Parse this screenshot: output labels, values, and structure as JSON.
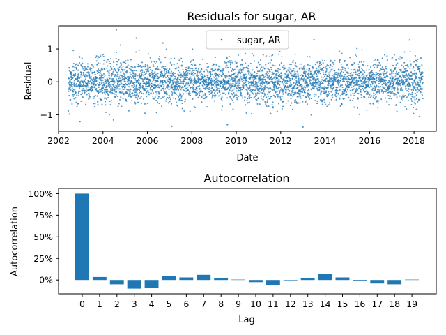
{
  "chart_data": [
    {
      "type": "scatter",
      "title": "Residuals for sugar, AR",
      "xlabel": "Date",
      "ylabel": "Residual",
      "xlim": [
        2002.0,
        2019.0
      ],
      "ylim": [
        -1.5,
        1.7
      ],
      "x_ticks": [
        2002,
        2004,
        2006,
        2008,
        2010,
        2012,
        2014,
        2016,
        2018
      ],
      "x_tick_labels": [
        "2002",
        "2004",
        "2006",
        "2008",
        "2010",
        "2012",
        "2014",
        "2016",
        "2018"
      ],
      "y_ticks": [
        -1,
        0,
        1
      ],
      "y_tick_labels": [
        "−1",
        "0",
        "1"
      ],
      "legend": {
        "entries": [
          "sugar, AR"
        ],
        "placement": "top-center"
      },
      "color": "#1f77b4",
      "grid": false,
      "series": [
        {
          "name": "sugar, AR",
          "x_range": [
            2002.45,
            2018.4
          ],
          "n_points": 4000,
          "mean": 0.0,
          "std": 0.32,
          "notable_points": [
            {
              "x": 2004.6,
              "y": 1.58
            },
            {
              "x": 2005.5,
              "y": 1.33
            },
            {
              "x": 2013.5,
              "y": 1.28
            },
            {
              "x": 2017.8,
              "y": 1.27
            },
            {
              "x": 2006.7,
              "y": 1.18
            },
            {
              "x": 2007.1,
              "y": -1.35
            },
            {
              "x": 2013.0,
              "y": -1.37
            },
            {
              "x": 2009.6,
              "y": -1.3
            }
          ]
        }
      ]
    },
    {
      "type": "bar",
      "title": "Autocorrelation",
      "xlabel": "Lag",
      "ylabel": "Autocorrelation",
      "categories": [
        "0",
        "1",
        "2",
        "3",
        "4",
        "5",
        "6",
        "7",
        "8",
        "9",
        "10",
        "11",
        "12",
        "13",
        "14",
        "15",
        "16",
        "17",
        "18",
        "19"
      ],
      "values": [
        1.0,
        0.035,
        -0.05,
        -0.1,
        -0.09,
        0.045,
        0.03,
        0.06,
        0.02,
        0.005,
        -0.025,
        -0.055,
        0.0,
        0.02,
        0.07,
        0.03,
        -0.01,
        -0.04,
        -0.05,
        0.005
      ],
      "ylim": [
        -0.16,
        1.06
      ],
      "y_ticks": [
        0,
        0.25,
        0.5,
        0.75,
        1.0
      ],
      "y_tick_labels": [
        "0%",
        "25%",
        "50%",
        "75%",
        "100%"
      ],
      "color": "#1f77b4",
      "grid": false
    }
  ]
}
